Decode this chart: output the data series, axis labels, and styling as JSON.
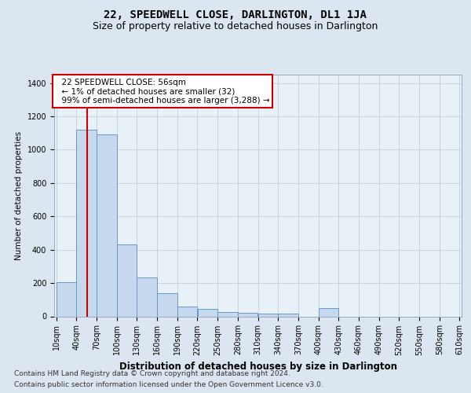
{
  "title": "22, SPEEDWELL CLOSE, DARLINGTON, DL1 1JA",
  "subtitle": "Size of property relative to detached houses in Darlington",
  "xlabel": "Distribution of detached houses by size in Darlington",
  "ylabel": "Number of detached properties",
  "footer_line1": "Contains HM Land Registry data © Crown copyright and database right 2024.",
  "footer_line2": "Contains public sector information licensed under the Open Government Licence v3.0.",
  "annotation_line1": "22 SPEEDWELL CLOSE: 56sqm",
  "annotation_line2": "← 1% of detached houses are smaller (32)",
  "annotation_line3": "99% of semi-detached houses are larger (3,288) →",
  "vline_x": 56,
  "bar_color": "#c5d8ee",
  "bar_edge_color": "#6699cc",
  "vline_color": "#cc0000",
  "background_color": "#dce6f0",
  "plot_bg_color": "#e8f0f8",
  "annotation_box_color": "#ffffff",
  "annotation_box_edge": "#cc0000",
  "bins": [
    10,
    40,
    70,
    100,
    130,
    160,
    190,
    220,
    250,
    280,
    310,
    340,
    370,
    400,
    430,
    460,
    490,
    520,
    550,
    580,
    610
  ],
  "counts": [
    205,
    1120,
    1090,
    430,
    235,
    140,
    60,
    45,
    25,
    20,
    15,
    15,
    0,
    50,
    0,
    0,
    0,
    0,
    0,
    0
  ],
  "ylim": [
    0,
    1450
  ],
  "yticks": [
    0,
    200,
    400,
    600,
    800,
    1000,
    1200,
    1400
  ],
  "title_fontsize": 10,
  "subtitle_fontsize": 9,
  "xlabel_fontsize": 8.5,
  "ylabel_fontsize": 7.5,
  "tick_fontsize": 7,
  "annotation_fontsize": 7.5,
  "footer_fontsize": 6.5
}
